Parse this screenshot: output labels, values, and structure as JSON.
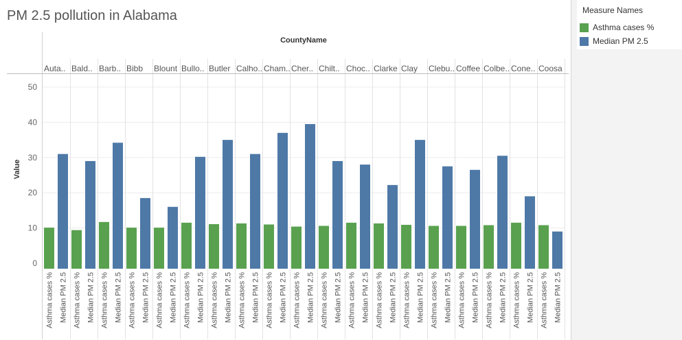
{
  "title": "PM 2.5 pollution in Alabama",
  "legend": {
    "title": "Measure Names",
    "items": [
      {
        "label": "Asthma cases %",
        "color": "#59a14f"
      },
      {
        "label": "Median PM 2.5",
        "color": "#4e79a7"
      }
    ]
  },
  "chart_data": {
    "type": "bar",
    "title": "PM 2.5 pollution in Alabama",
    "header_title": "CountyName",
    "ylabel": "Value",
    "ylim": [
      0,
      50
    ],
    "yticks": [
      0,
      10,
      20,
      30,
      40,
      50
    ],
    "grid": true,
    "legend_position": "right",
    "categories": [
      "Auta..",
      "Bald..",
      "Barb..",
      "Bibb",
      "Blount",
      "Bullo..",
      "Butler",
      "Calho..",
      "Cham..",
      "Cher..",
      "Chilt..",
      "Choc..",
      "Clarke",
      "Clay",
      "Clebu..",
      "Coffee",
      "Colbe..",
      "Cone..",
      "Coosa"
    ],
    "series": [
      {
        "name": "Asthma cases %",
        "color": "#59a14f",
        "values": [
          10.1,
          9.4,
          11.7,
          10.1,
          10.1,
          11.5,
          11.1,
          11.3,
          11.0,
          10.4,
          10.6,
          11.5,
          11.3,
          10.9,
          10.6,
          10.6,
          10.8,
          11.5,
          10.8
        ]
      },
      {
        "name": "Median PM 2.5",
        "color": "#4e79a7",
        "values": [
          31.0,
          29.0,
          34.2,
          18.5,
          16.0,
          30.2,
          35.0,
          31.0,
          37.0,
          39.5,
          29.0,
          28.0,
          22.2,
          35.0,
          27.5,
          26.5,
          30.5,
          19.0,
          9.0
        ]
      }
    ]
  }
}
